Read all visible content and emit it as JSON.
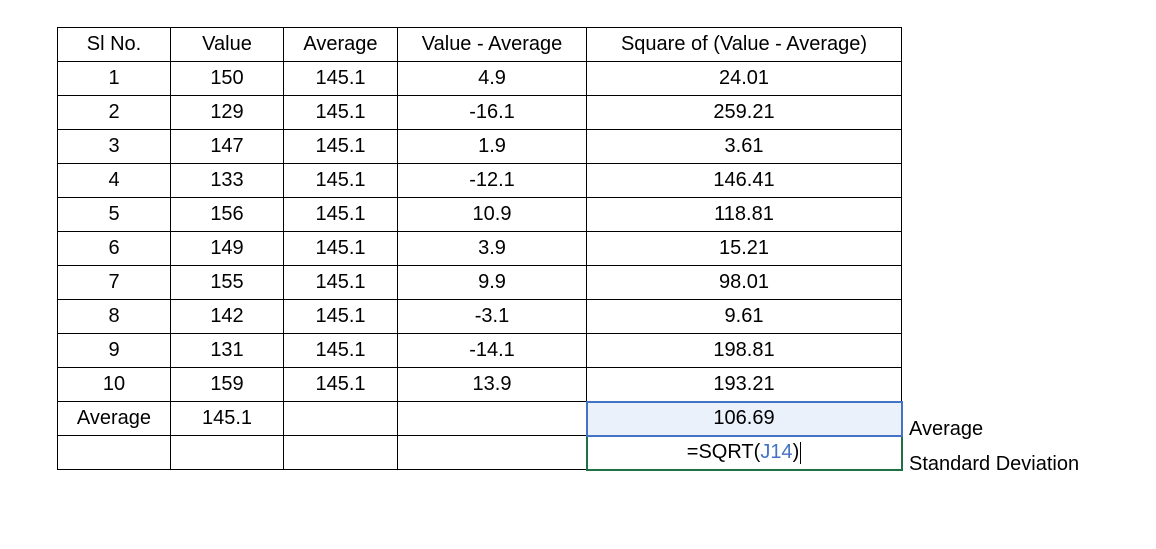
{
  "table": {
    "headers": [
      "Sl No.",
      "Value",
      "Average",
      "Value - Average",
      "Square of (Value - Average)"
    ],
    "rows": [
      {
        "sl": "1",
        "value": "150",
        "avg": "145.1",
        "diff": "4.9",
        "sq": "24.01"
      },
      {
        "sl": "2",
        "value": "129",
        "avg": "145.1",
        "diff": "-16.1",
        "sq": "259.21"
      },
      {
        "sl": "3",
        "value": "147",
        "avg": "145.1",
        "diff": "1.9",
        "sq": "3.61"
      },
      {
        "sl": "4",
        "value": "133",
        "avg": "145.1",
        "diff": "-12.1",
        "sq": "146.41"
      },
      {
        "sl": "5",
        "value": "156",
        "avg": "145.1",
        "diff": "10.9",
        "sq": "118.81"
      },
      {
        "sl": "6",
        "value": "149",
        "avg": "145.1",
        "diff": "3.9",
        "sq": "15.21"
      },
      {
        "sl": "7",
        "value": "155",
        "avg": "145.1",
        "diff": "9.9",
        "sq": "98.01"
      },
      {
        "sl": "8",
        "value": "142",
        "avg": "145.1",
        "diff": "-3.1",
        "sq": "9.61"
      },
      {
        "sl": "9",
        "value": "131",
        "avg": "145.1",
        "diff": "-14.1",
        "sq": "198.81"
      },
      {
        "sl": "10",
        "value": "159",
        "avg": "145.1",
        "diff": "13.9",
        "sq": "193.21"
      }
    ],
    "average_row": {
      "label": "Average",
      "value": "145.1",
      "result": "106.69"
    },
    "formula": {
      "prefix": "=SQRT(",
      "ref": "J14",
      "suffix": ")"
    }
  },
  "side_labels": {
    "average": "Average",
    "std_dev": "Standard Deviation"
  },
  "colors": {
    "ref_border": "#4472c4",
    "ref_fill": "#eaf1fb",
    "ref_text": "#4472c4",
    "active_border": "#1e7145",
    "grid_border": "#000000"
  }
}
